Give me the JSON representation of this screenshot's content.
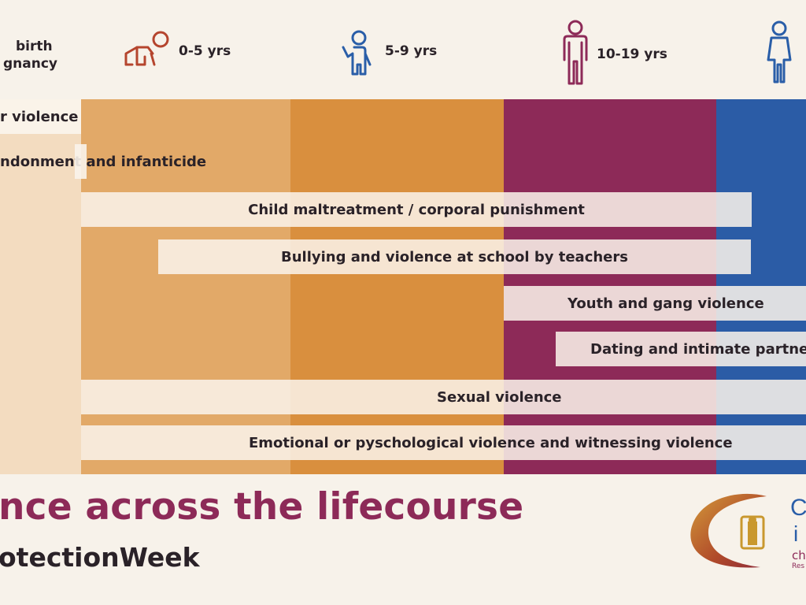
{
  "header": {
    "stage_labels": [
      {
        "line1": "birth",
        "line2": "gnancy"
      },
      {
        "text": "0-5 yrs"
      },
      {
        "text": "5-9 yrs"
      },
      {
        "text": "10-19 yrs"
      }
    ],
    "icons": [
      "crawling-baby-icon",
      "child-icon",
      "adolescent-icon",
      "adult-woman-icon"
    ],
    "colors": {
      "baby": "#b5452e",
      "child": "#2a5ea8",
      "teen": "#8d2a58",
      "adult": "#2a5ea8"
    }
  },
  "columns": {
    "colors": [
      "#f3dcc0",
      "#e2a968",
      "#d98f3e",
      "#8d2a58",
      "#2b5ca6"
    ]
  },
  "bars": [
    {
      "label": "r violence"
    },
    {
      "label": "ndonment and infanticide"
    },
    {
      "label": "Child maltreatment / corporal punishment"
    },
    {
      "label": "Bullying and violence at school by teachers"
    },
    {
      "label": "Youth and gang violence"
    },
    {
      "label": "Dating and intimate partne"
    },
    {
      "label": "Sexual violence"
    },
    {
      "label": "Emotional or pyschological violence and witnessing violence"
    }
  ],
  "footer": {
    "title": "nce across the lifecourse",
    "hashtag": "otectionWeek",
    "logo_letters": [
      "C",
      "i"
    ],
    "logo_sub": "ch",
    "logo_sub2": "Res"
  }
}
